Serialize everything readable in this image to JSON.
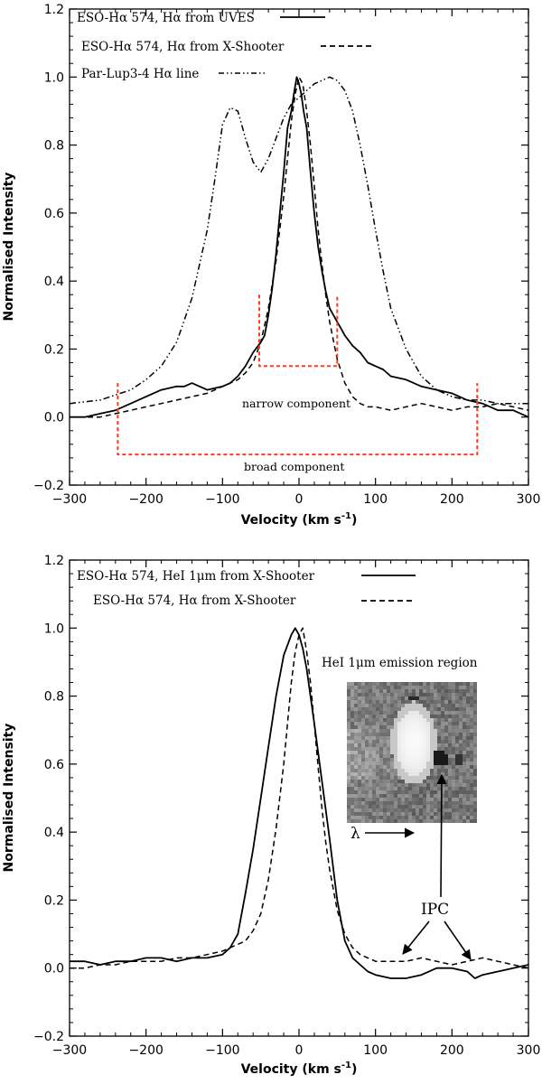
{
  "chart_data": [
    {
      "type": "line",
      "xlabel": "Velocity (km s",
      "xlabel_sup": "-1",
      "xlabel_end": ")",
      "ylabel": "Normalised Intensity",
      "xlim": [
        -300,
        300
      ],
      "ylim": [
        -0.2,
        1.2
      ],
      "xticks": [
        "-300",
        "-200",
        "-100",
        "0",
        "100",
        "200",
        "300"
      ],
      "yticks": [
        "-0.2",
        "0.0",
        "0.2",
        "0.4",
        "0.6",
        "0.8",
        "1.0",
        "1.2"
      ],
      "legend": [
        {
          "label": "ESO-Hα 574, Hα from UVES",
          "style": "solid"
        },
        {
          "label": "ESO-Hα 574, Hα from X-Shooter",
          "style": "dashed"
        },
        {
          "label": "Par-Lup3-4 Hα line",
          "style": "dash-dot-dot"
        }
      ],
      "series": [
        {
          "name": "ESO-Hα 574, Hα from UVES",
          "style": "solid",
          "x": [
            -300,
            -280,
            -260,
            -240,
            -220,
            -200,
            -180,
            -160,
            -150,
            -140,
            -120,
            -100,
            -90,
            -80,
            -70,
            -60,
            -50,
            -45,
            -40,
            -35,
            -30,
            -25,
            -20,
            -15,
            -10,
            -6,
            -3,
            0,
            3,
            6,
            10,
            15,
            20,
            25,
            30,
            35,
            40,
            45,
            50,
            55,
            60,
            70,
            80,
            90,
            100,
            110,
            120,
            140,
            160,
            180,
            200,
            220,
            240,
            260,
            280,
            300
          ],
          "y": [
            0.0,
            0.0,
            0.01,
            0.02,
            0.04,
            0.06,
            0.08,
            0.09,
            0.09,
            0.1,
            0.08,
            0.09,
            0.1,
            0.12,
            0.15,
            0.19,
            0.22,
            0.24,
            0.3,
            0.38,
            0.48,
            0.6,
            0.72,
            0.85,
            0.9,
            0.96,
            1.0,
            0.98,
            0.95,
            0.9,
            0.85,
            0.72,
            0.6,
            0.5,
            0.43,
            0.37,
            0.32,
            0.3,
            0.28,
            0.26,
            0.24,
            0.21,
            0.19,
            0.16,
            0.15,
            0.14,
            0.12,
            0.11,
            0.09,
            0.08,
            0.07,
            0.05,
            0.04,
            0.02,
            0.02,
            0.0
          ]
        },
        {
          "name": "ESO-Hα 574, Hα from X-Shooter",
          "style": "dashed",
          "x": [
            -300,
            -280,
            -260,
            -240,
            -220,
            -200,
            -180,
            -160,
            -140,
            -120,
            -100,
            -90,
            -80,
            -70,
            -60,
            -50,
            -40,
            -30,
            -20,
            -15,
            -10,
            -5,
            0,
            5,
            10,
            15,
            20,
            25,
            30,
            35,
            40,
            50,
            60,
            70,
            80,
            90,
            100,
            120,
            140,
            160,
            180,
            200,
            220,
            240,
            260,
            280,
            300
          ],
          "y": [
            0.0,
            0.0,
            0.0,
            0.01,
            0.02,
            0.03,
            0.04,
            0.05,
            0.06,
            0.07,
            0.09,
            0.1,
            0.11,
            0.13,
            0.16,
            0.22,
            0.32,
            0.46,
            0.65,
            0.76,
            0.87,
            0.95,
            1.0,
            0.98,
            0.9,
            0.8,
            0.68,
            0.55,
            0.45,
            0.36,
            0.28,
            0.17,
            0.1,
            0.06,
            0.04,
            0.03,
            0.03,
            0.02,
            0.03,
            0.04,
            0.03,
            0.02,
            0.03,
            0.03,
            0.04,
            0.03,
            0.02
          ]
        },
        {
          "name": "Par-Lup3-4 Hα line",
          "style": "dash-dot-dot",
          "x": [
            -300,
            -260,
            -220,
            -200,
            -180,
            -160,
            -140,
            -120,
            -110,
            -100,
            -90,
            -80,
            -70,
            -60,
            -50,
            -40,
            -30,
            -20,
            -10,
            0,
            10,
            20,
            30,
            40,
            50,
            60,
            70,
            80,
            90,
            100,
            110,
            120,
            140,
            160,
            180,
            200,
            220,
            240,
            260,
            280,
            300
          ],
          "y": [
            0.04,
            0.05,
            0.08,
            0.11,
            0.15,
            0.22,
            0.35,
            0.55,
            0.7,
            0.86,
            0.91,
            0.9,
            0.82,
            0.75,
            0.72,
            0.76,
            0.82,
            0.88,
            0.92,
            0.94,
            0.96,
            0.98,
            0.99,
            1.0,
            0.99,
            0.96,
            0.9,
            0.8,
            0.68,
            0.55,
            0.43,
            0.32,
            0.2,
            0.12,
            0.08,
            0.06,
            0.05,
            0.05,
            0.04,
            0.04,
            0.04
          ]
        }
      ],
      "annotations": {
        "narrow_label": "narrow component",
        "broad_label": "broad component",
        "narrow_box_x": [
          -52,
          50
        ],
        "narrow_box_y": [
          0.15,
          0.36
        ],
        "broad_box_x": [
          -237,
          233
        ],
        "broad_box_y": [
          -0.11,
          0.1
        ],
        "box_color": "#ff3b1f"
      }
    },
    {
      "type": "line",
      "xlabel": "Velocity (km s",
      "xlabel_sup": "-1",
      "xlabel_end": ")",
      "ylabel": "Normalised Intensity",
      "xlim": [
        -300,
        300
      ],
      "ylim": [
        -0.2,
        1.2
      ],
      "xticks": [
        "-300",
        "-200",
        "-100",
        "0",
        "100",
        "200",
        "300"
      ],
      "yticks": [
        "-0.2",
        "0.0",
        "0.2",
        "0.4",
        "0.6",
        "0.8",
        "1.0",
        "1.2"
      ],
      "legend": [
        {
          "label": "ESO-Hα 574, HeI 1μm from X-Shooter",
          "style": "solid"
        },
        {
          "label": "ESO-Hα 574, Hα from X-Shooter",
          "style": "dashed"
        }
      ],
      "series": [
        {
          "name": "ESO-Hα 574, HeI 1μm from X-Shooter",
          "style": "solid",
          "x": [
            -300,
            -280,
            -260,
            -240,
            -220,
            -200,
            -180,
            -160,
            -140,
            -120,
            -100,
            -90,
            -80,
            -70,
            -60,
            -50,
            -40,
            -30,
            -20,
            -10,
            -5,
            0,
            5,
            10,
            20,
            30,
            40,
            50,
            60,
            70,
            80,
            90,
            100,
            120,
            140,
            160,
            180,
            200,
            220,
            230,
            240,
            260,
            280,
            300
          ],
          "y": [
            0.02,
            0.02,
            0.01,
            0.02,
            0.02,
            0.03,
            0.03,
            0.02,
            0.03,
            0.03,
            0.04,
            0.06,
            0.1,
            0.22,
            0.35,
            0.5,
            0.65,
            0.8,
            0.92,
            0.98,
            1.0,
            0.98,
            0.94,
            0.88,
            0.72,
            0.55,
            0.38,
            0.2,
            0.08,
            0.03,
            0.01,
            -0.01,
            -0.02,
            -0.03,
            -0.03,
            -0.02,
            0.0,
            0.0,
            -0.01,
            -0.03,
            -0.02,
            -0.01,
            0.0,
            0.01
          ]
        },
        {
          "name": "ESO-Hα 574, Hα from X-Shooter",
          "style": "dashed",
          "x": [
            -300,
            -280,
            -260,
            -240,
            -220,
            -200,
            -180,
            -160,
            -140,
            -120,
            -100,
            -90,
            -80,
            -70,
            -60,
            -50,
            -40,
            -30,
            -20,
            -15,
            -10,
            -5,
            0,
            5,
            10,
            15,
            20,
            25,
            30,
            35,
            40,
            50,
            60,
            70,
            80,
            90,
            100,
            120,
            140,
            160,
            180,
            200,
            220,
            240,
            260,
            280,
            300
          ],
          "y": [
            0.0,
            0.0,
            0.01,
            0.01,
            0.02,
            0.02,
            0.02,
            0.03,
            0.03,
            0.04,
            0.05,
            0.06,
            0.07,
            0.08,
            0.11,
            0.16,
            0.26,
            0.41,
            0.6,
            0.72,
            0.84,
            0.93,
            0.98,
            1.0,
            0.93,
            0.84,
            0.72,
            0.59,
            0.47,
            0.37,
            0.29,
            0.17,
            0.1,
            0.06,
            0.04,
            0.03,
            0.02,
            0.02,
            0.02,
            0.03,
            0.02,
            0.01,
            0.02,
            0.03,
            0.02,
            0.01,
            0.0
          ]
        }
      ],
      "inset": {
        "title": "HeI 1μm emission region",
        "lambda_label": "λ",
        "ipc_label": "IPC"
      }
    }
  ]
}
